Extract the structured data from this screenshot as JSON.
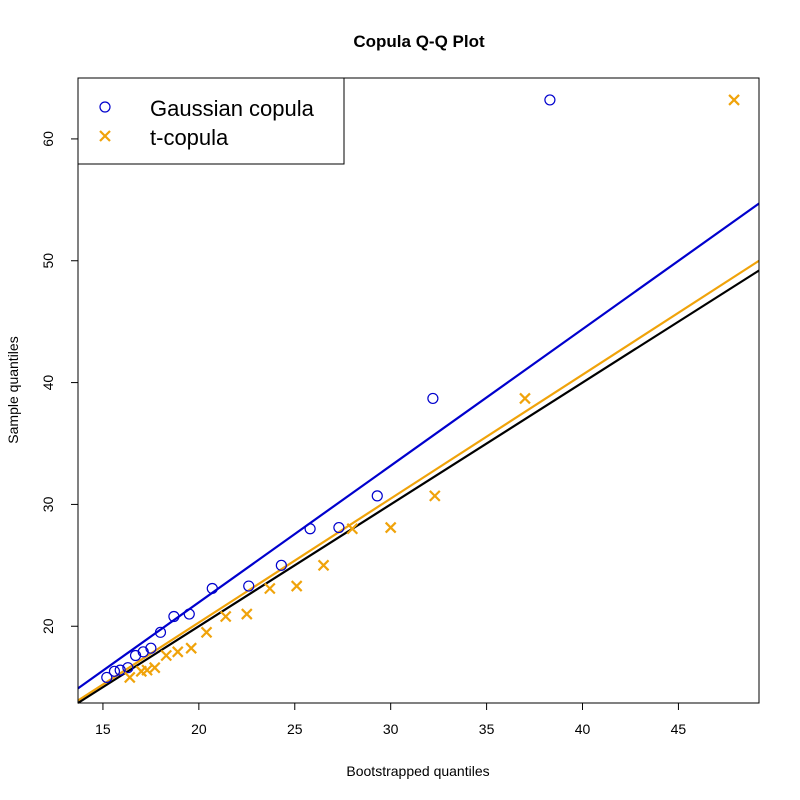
{
  "chart_data": {
    "type": "scatter",
    "title": "Copula Q-Q Plot",
    "xlabel": "Bootstrapped quantiles",
    "ylabel": "Sample quantiles",
    "xlim": [
      13.7,
      49.2
    ],
    "ylim": [
      13.7,
      65.0
    ],
    "xticks": [
      15,
      20,
      25,
      30,
      35,
      40,
      45
    ],
    "yticks": [
      20,
      30,
      40,
      50,
      60
    ],
    "grid": false,
    "legend": {
      "placement": "top-left",
      "entries": [
        {
          "name": "Gaussian copula",
          "marker": "circle",
          "color": "#0000cd"
        },
        {
          "name": "t-copula",
          "marker": "cross",
          "color": "#f0a30a"
        }
      ]
    },
    "series": [
      {
        "name": "Gaussian copula",
        "marker": "circle",
        "color": "#0000cd",
        "x": [
          15.2,
          15.6,
          15.9,
          16.3,
          16.7,
          17.1,
          17.5,
          18.0,
          18.7,
          19.5,
          20.7,
          22.6,
          24.3,
          25.8,
          27.3,
          29.3,
          32.2,
          38.3
        ],
        "y": [
          15.8,
          16.3,
          16.4,
          16.6,
          17.6,
          17.9,
          18.2,
          19.5,
          20.8,
          21.0,
          23.1,
          23.3,
          25.0,
          28.0,
          28.1,
          30.7,
          38.7,
          63.2
        ]
      },
      {
        "name": "t-copula",
        "marker": "cross",
        "color": "#f0a30a",
        "x": [
          16.4,
          17.0,
          17.3,
          17.7,
          18.3,
          18.9,
          19.6,
          20.4,
          21.4,
          22.5,
          23.7,
          25.1,
          26.5,
          28.0,
          30.0,
          32.3,
          37.0,
          47.9
        ],
        "y": [
          15.8,
          16.3,
          16.4,
          16.6,
          17.6,
          17.9,
          18.2,
          19.5,
          20.8,
          21.0,
          23.1,
          23.3,
          25.0,
          28.0,
          28.1,
          30.7,
          38.7,
          63.2
        ]
      }
    ],
    "reference_lines": [
      {
        "color": "#0000cd",
        "x": [
          13.7,
          49.2
        ],
        "y": [
          14.9,
          54.7
        ]
      },
      {
        "color": "#f0a30a",
        "x": [
          13.7,
          49.2
        ],
        "y": [
          13.9,
          50.0
        ]
      },
      {
        "color": "#000000",
        "x": [
          13.7,
          49.2
        ],
        "y": [
          13.7,
          49.2
        ]
      }
    ]
  }
}
